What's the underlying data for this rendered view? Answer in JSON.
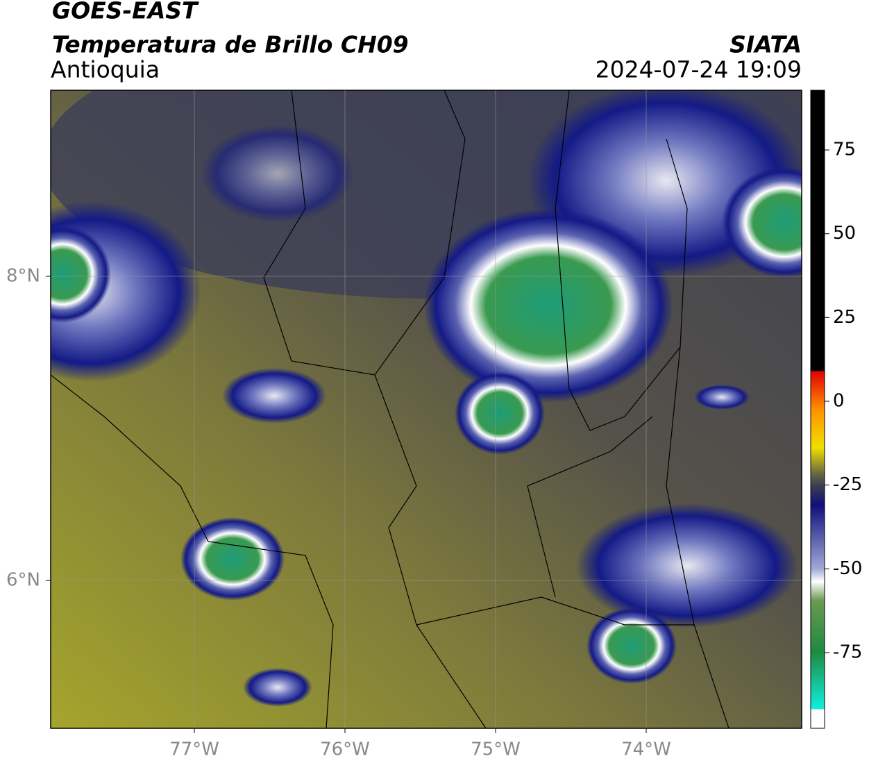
{
  "header": {
    "satellite": "GOES-EAST",
    "product": "Temperatura de Brillo CH09",
    "region": "Antioquia",
    "source": "SIATA",
    "datetime": "2024-07-24 19:09"
  },
  "map": {
    "lon_labels": [
      "77°W",
      "76°W",
      "75°W",
      "74°W"
    ],
    "lat_labels": [
      "8°N",
      "6°N"
    ]
  },
  "colorbar": {
    "ticks": [
      75,
      50,
      25,
      0,
      -25,
      -50,
      -75
    ]
  }
}
